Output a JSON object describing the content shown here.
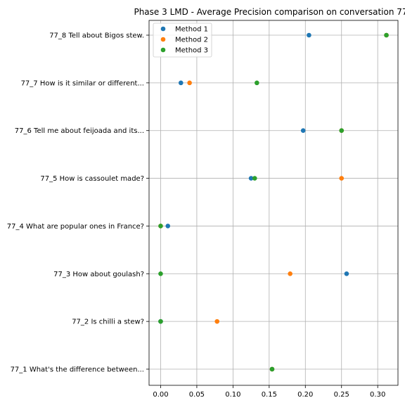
{
  "chart_data": {
    "type": "scatter",
    "title": "Phase 3 LMD - Average Precision comparison on conversation 77",
    "xlabel": "",
    "ylabel": "",
    "xlim": [
      -0.016,
      0.328
    ],
    "xticks": [
      0.0,
      0.05,
      0.1,
      0.15,
      0.2,
      0.25,
      0.3
    ],
    "xtick_labels": [
      "0.00",
      "0.05",
      "0.10",
      "0.15",
      "0.20",
      "0.25",
      "0.30"
    ],
    "grid": true,
    "legend_position": "top-left",
    "categories": [
      "77_8 Tell about Bigos stew.",
      "77_7 How is it similar or different...",
      "77_6 Tell me about feijoada and its...",
      "77_5 How is cassoulet made?",
      "77_4 What are popular ones in France?",
      "77_3 How about goulash?",
      "77_2 Is chilli a stew?",
      "77_1 What's the difference between..."
    ],
    "series": [
      {
        "name": "Method 1",
        "color": "#1f77b4",
        "values": [
          0.205,
          0.028,
          0.197,
          0.125,
          0.01,
          0.257,
          0.0,
          0.154
        ]
      },
      {
        "name": "Method 2",
        "color": "#ff7f0e",
        "values": [
          0.312,
          0.04,
          0.25,
          0.25,
          0.0,
          0.179,
          0.078,
          0.154
        ]
      },
      {
        "name": "Method 3",
        "color": "#2ca02c",
        "values": [
          0.312,
          0.133,
          0.25,
          0.13,
          0.0,
          0.0,
          0.0,
          0.154
        ]
      }
    ]
  }
}
